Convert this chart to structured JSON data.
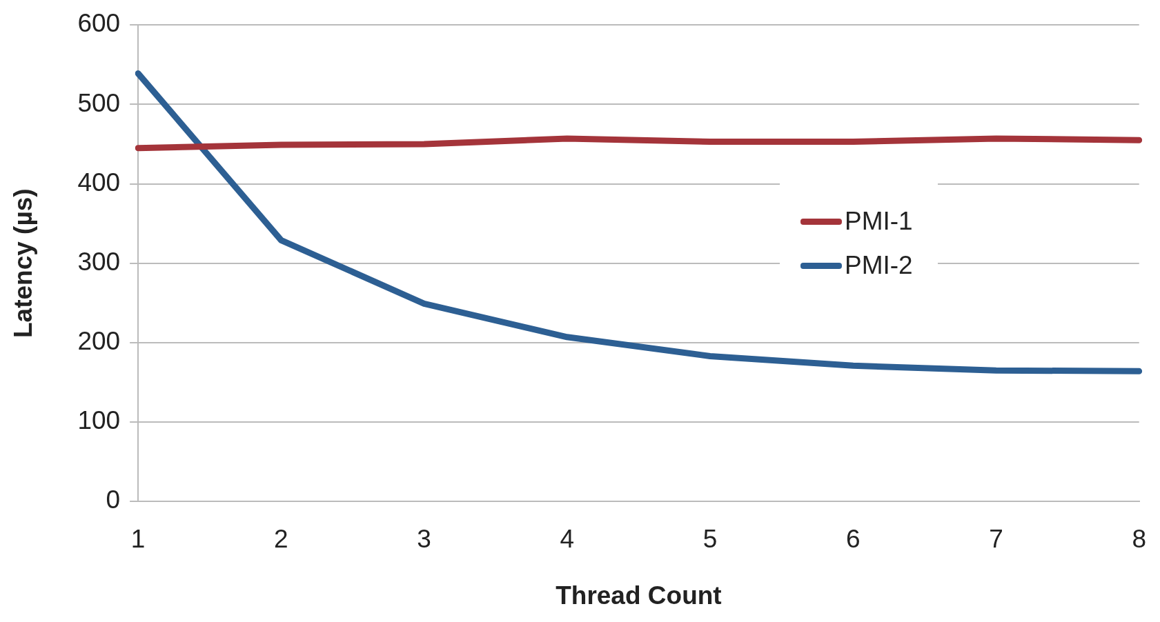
{
  "chart_data": {
    "type": "line",
    "xlabel": "Thread Count",
    "ylabel": "Latency (µs)",
    "categories": [
      "1",
      "2",
      "3",
      "4",
      "5",
      "6",
      "7",
      "8"
    ],
    "series": [
      {
        "name": "PMI-1",
        "color": "#a4343a",
        "values": [
          445,
          449,
          450,
          457,
          453,
          453,
          457,
          455
        ]
      },
      {
        "name": "PMI-2",
        "color": "#2d5f93",
        "values": [
          539,
          329,
          249,
          207,
          183,
          171,
          165,
          164
        ]
      }
    ],
    "ylim": [
      0,
      600
    ],
    "yticks": [
      0,
      100,
      200,
      300,
      400,
      500,
      600
    ],
    "grid": "y",
    "legend": "right",
    "marker": "none",
    "line_style": "solid"
  }
}
